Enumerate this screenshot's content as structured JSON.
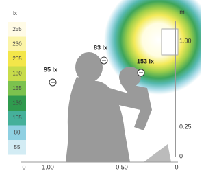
{
  "legend": {
    "unit": "lx",
    "values": [
      "255",
      "230",
      "205",
      "180",
      "155",
      "130",
      "105",
      "80",
      "55"
    ]
  },
  "labels": [
    "95 lx",
    "83 lx",
    "153 lx"
  ],
  "bottom_axis": {
    "ticks": [
      "0",
      "1.00",
      "0.50",
      "0"
    ]
  },
  "right_axis": {
    "unit": "m",
    "ticks": [
      "1.00",
      "0.25",
      "0"
    ]
  }
}
